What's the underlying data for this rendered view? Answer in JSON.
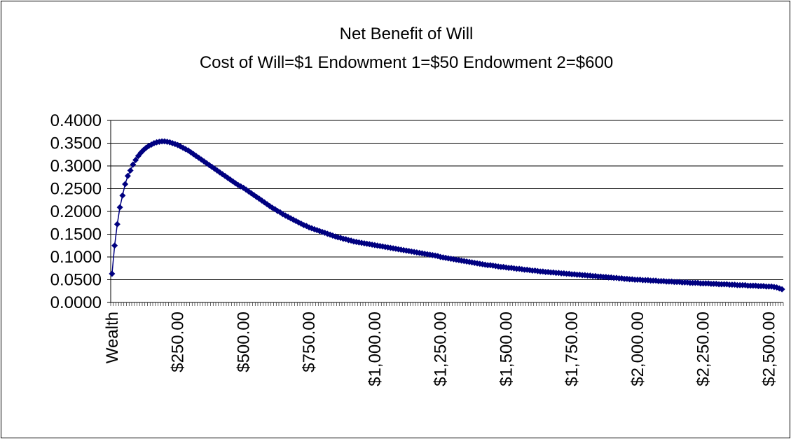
{
  "chart_data": {
    "type": "line",
    "title": "Net Benefit of Will",
    "subtitle": "Cost of Will=$1 Endowment 1=$50 Endowment 2=$600",
    "categories": [
      "Wealth",
      null,
      null,
      null,
      null,
      null,
      null,
      null,
      null,
      null,
      null,
      null,
      null,
      null,
      null,
      null,
      null,
      null,
      null,
      null,
      null,
      null,
      null,
      null,
      null,
      "$250.00",
      null,
      null,
      null,
      null,
      null,
      null,
      null,
      null,
      null,
      null,
      null,
      null,
      null,
      null,
      null,
      null,
      null,
      null,
      null,
      null,
      null,
      null,
      null,
      null,
      "$500.00",
      null,
      null,
      null,
      null,
      null,
      null,
      null,
      null,
      null,
      null,
      null,
      null,
      null,
      null,
      null,
      null,
      null,
      null,
      null,
      null,
      null,
      null,
      null,
      null,
      "$750.00",
      null,
      null,
      null,
      null,
      null,
      null,
      null,
      null,
      null,
      null,
      null,
      null,
      null,
      null,
      null,
      null,
      null,
      null,
      null,
      null,
      null,
      null,
      null,
      null,
      "$1,000.00",
      null,
      null,
      null,
      null,
      null,
      null,
      null,
      null,
      null,
      null,
      null,
      null,
      null,
      null,
      null,
      null,
      null,
      null,
      null,
      null,
      null,
      null,
      null,
      null,
      "$1,250.00",
      null,
      null,
      null,
      null,
      null,
      null,
      null,
      null,
      null,
      null,
      null,
      null,
      null,
      null,
      null,
      null,
      null,
      null,
      null,
      null,
      null,
      null,
      null,
      null,
      "$1,500.00",
      null,
      null,
      null,
      null,
      null,
      null,
      null,
      null,
      null,
      null,
      null,
      null,
      null,
      null,
      null,
      null,
      null,
      null,
      null,
      null,
      null,
      null,
      null,
      null,
      "$1,750.00",
      null,
      null,
      null,
      null,
      null,
      null,
      null,
      null,
      null,
      null,
      null,
      null,
      null,
      null,
      null,
      null,
      null,
      null,
      null,
      null,
      null,
      null,
      null,
      null,
      "$2,000.00",
      null,
      null,
      null,
      null,
      null,
      null,
      null,
      null,
      null,
      null,
      null,
      null,
      null,
      null,
      null,
      null,
      null,
      null,
      null,
      null,
      null,
      null,
      null,
      null,
      "$2,250.00",
      null,
      null,
      null,
      null,
      null,
      null,
      null,
      null,
      null,
      null,
      null,
      null,
      null,
      null,
      null,
      null,
      null,
      null,
      null,
      null,
      null,
      null,
      null,
      null,
      "$2,500.00",
      null,
      null,
      null,
      null,
      null
    ],
    "values": [
      0.063,
      0.125,
      0.172,
      0.209,
      0.235,
      0.26,
      0.278,
      0.29,
      0.303,
      0.313,
      0.322,
      0.329,
      0.335,
      0.34,
      0.344,
      0.347,
      0.35,
      0.352,
      0.353,
      0.354,
      0.354,
      0.353,
      0.352,
      0.35,
      0.348,
      0.346,
      0.343,
      0.34,
      0.337,
      0.334,
      0.33,
      0.326,
      0.322,
      0.318,
      0.314,
      0.31,
      0.306,
      0.302,
      0.298,
      0.294,
      0.29,
      0.286,
      0.282,
      0.278,
      0.274,
      0.27,
      0.266,
      0.262,
      0.258,
      0.255,
      0.252,
      0.248,
      0.244,
      0.24,
      0.236,
      0.232,
      0.228,
      0.224,
      0.22,
      0.216,
      0.212,
      0.208,
      0.205,
      0.201,
      0.198,
      0.194,
      0.191,
      0.188,
      0.185,
      0.182,
      0.179,
      0.176,
      0.173,
      0.17,
      0.168,
      0.165,
      0.163,
      0.161,
      0.159,
      0.157,
      0.155,
      0.153,
      0.151,
      0.149,
      0.147,
      0.145,
      0.143,
      0.142,
      0.14,
      0.139,
      0.137,
      0.136,
      0.134,
      0.133,
      0.132,
      0.131,
      0.13,
      0.129,
      0.128,
      0.127,
      0.126,
      0.125,
      0.124,
      0.123,
      0.122,
      0.121,
      0.12,
      0.119,
      0.118,
      0.117,
      0.116,
      0.115,
      0.114,
      0.113,
      0.112,
      0.111,
      0.11,
      0.109,
      0.108,
      0.107,
      0.106,
      0.105,
      0.104,
      0.103,
      0.102,
      0.1,
      0.099,
      0.098,
      0.097,
      0.096,
      0.095,
      0.094,
      0.093,
      0.092,
      0.091,
      0.09,
      0.089,
      0.088,
      0.087,
      0.086,
      0.085,
      0.084,
      0.083,
      0.082,
      0.082,
      0.081,
      0.08,
      0.079,
      0.078,
      0.078,
      0.077,
      0.076,
      0.076,
      0.075,
      0.074,
      0.074,
      0.073,
      0.072,
      0.072,
      0.071,
      0.07,
      0.07,
      0.069,
      0.068,
      0.068,
      0.067,
      0.067,
      0.066,
      0.066,
      0.065,
      0.065,
      0.064,
      0.064,
      0.063,
      0.063,
      0.062,
      0.062,
      0.061,
      0.061,
      0.06,
      0.06,
      0.059,
      0.059,
      0.058,
      0.058,
      0.057,
      0.057,
      0.056,
      0.056,
      0.055,
      0.055,
      0.054,
      0.054,
      0.053,
      0.053,
      0.052,
      0.052,
      0.051,
      0.051,
      0.05,
      0.05,
      0.05,
      0.049,
      0.049,
      0.049,
      0.048,
      0.048,
      0.048,
      0.047,
      0.047,
      0.047,
      0.046,
      0.046,
      0.046,
      0.045,
      0.045,
      0.045,
      0.044,
      0.044,
      0.044,
      0.043,
      0.043,
      0.043,
      0.043,
      0.042,
      0.042,
      0.042,
      0.042,
      0.041,
      0.041,
      0.041,
      0.04,
      0.04,
      0.04,
      0.04,
      0.039,
      0.039,
      0.039,
      0.038,
      0.038,
      0.038,
      0.038,
      0.037,
      0.037,
      0.037,
      0.037,
      0.036,
      0.036,
      0.036,
      0.035,
      0.035,
      0.035,
      0.034,
      0.033,
      0.031,
      0.029
    ],
    "color": "#000080",
    "ylim": [
      0,
      0.4
    ],
    "yticks": [
      {
        "value": 0,
        "label": "0.0000"
      },
      {
        "value": 0.05,
        "label": "0.0500"
      },
      {
        "value": 0.1,
        "label": "0.1000"
      },
      {
        "value": 0.15,
        "label": "0.1500"
      },
      {
        "value": 0.2,
        "label": "0.2000"
      },
      {
        "value": 0.25,
        "label": "0.2500"
      },
      {
        "value": 0.3,
        "label": "0.3000"
      },
      {
        "value": 0.35,
        "label": "0.3500"
      },
      {
        "value": 0.4,
        "label": "0.4000"
      }
    ],
    "grid": true
  }
}
